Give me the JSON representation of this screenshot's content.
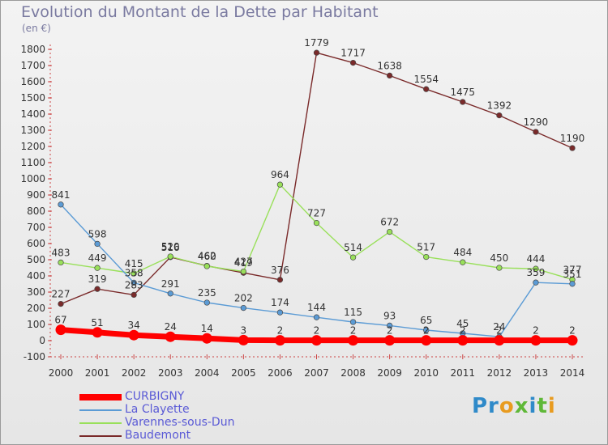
{
  "header": {
    "title": "Evolution du Montant de la Dette par Habitant",
    "unit": "(en €)"
  },
  "brand": {
    "logo_text": "Proxiti"
  },
  "chart_data": {
    "type": "line",
    "title": "Evolution du Montant de la Dette par Habitant",
    "subtitle": "(en €)",
    "xlabel": "",
    "ylabel": "",
    "x": [
      "2000",
      "2001",
      "2002",
      "2003",
      "2004",
      "2005",
      "2006",
      "2007",
      "2008",
      "2009",
      "2010",
      "2011",
      "2012",
      "2013",
      "2014"
    ],
    "ylim": [
      -100,
      1800
    ],
    "yticks": [
      -100,
      0,
      100,
      200,
      300,
      400,
      500,
      600,
      700,
      800,
      900,
      1000,
      1100,
      1200,
      1300,
      1400,
      1500,
      1600,
      1700,
      1800
    ],
    "grid": false,
    "legend_position": "bottom-left",
    "series": [
      {
        "name": "CURBIGNY",
        "color": "#ff0000",
        "values": [
          67,
          51,
          34,
          24,
          14,
          3,
          2,
          2,
          2,
          2,
          2,
          2,
          2,
          2,
          2
        ]
      },
      {
        "name": "La Clayette",
        "color": "#5b9bd5",
        "values": [
          841,
          598,
          358,
          291,
          235,
          202,
          174,
          144,
          115,
          93,
          65,
          45,
          24,
          359,
          351
        ]
      },
      {
        "name": "Varennes-sous-Dun",
        "color": "#99e05a",
        "values": [
          483,
          449,
          415,
          520,
          460,
          427,
          964,
          727,
          514,
          672,
          517,
          484,
          450,
          444,
          377
        ]
      },
      {
        "name": "Baudemont",
        "color": "#7a2a2a",
        "values": [
          227,
          319,
          283,
          516,
          462,
          419,
          376,
          1779,
          1717,
          1638,
          1554,
          1475,
          1392,
          1290,
          1190
        ]
      }
    ]
  }
}
